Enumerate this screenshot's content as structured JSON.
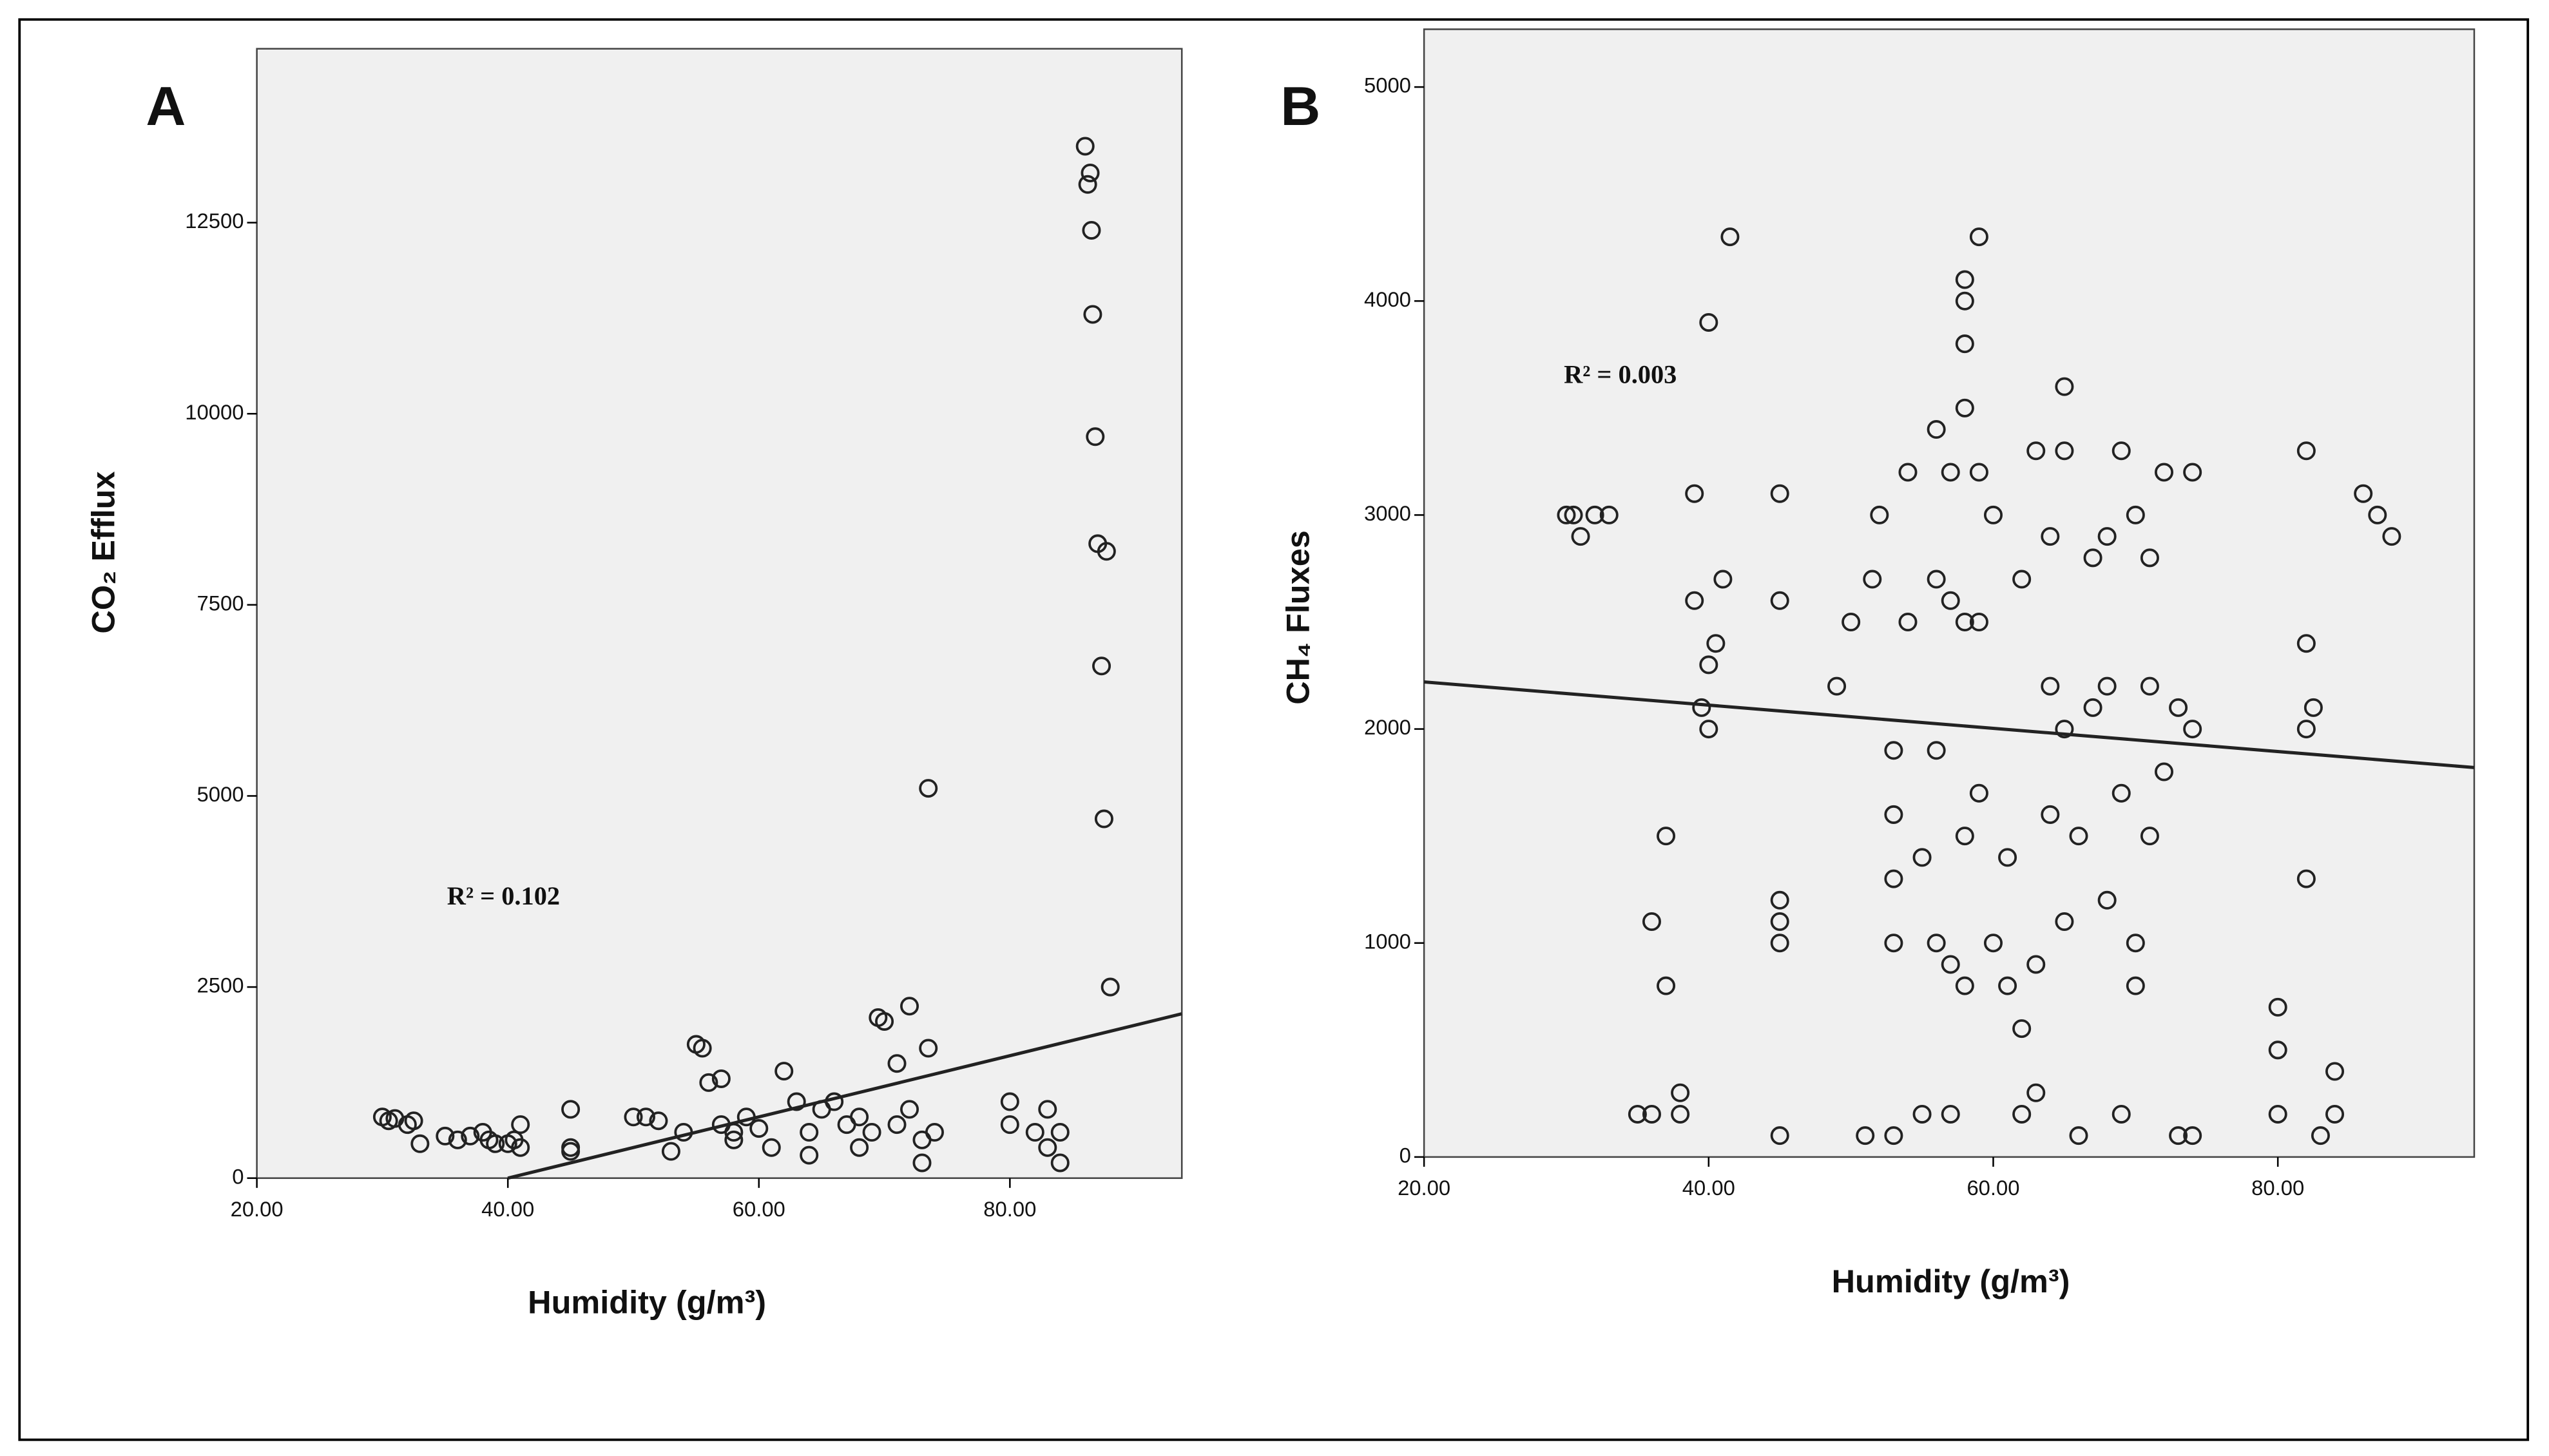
{
  "chart_data": [
    {
      "type": "scatter",
      "title": "A",
      "x_label": "Humidity (g/m³)",
      "y_label": "CO₂ Efflux",
      "annotation": "R² = 0.102",
      "xlim": [
        20,
        93.7
      ],
      "ylim": [
        0,
        14775
      ],
      "xticks": [
        {
          "value": 20,
          "label": "20.00"
        },
        {
          "value": 40,
          "label": "40.00"
        },
        {
          "value": 60,
          "label": "60.00"
        },
        {
          "value": 80,
          "label": "80.00"
        }
      ],
      "yticks": [
        0,
        2500,
        5000,
        7500,
        10000,
        12500
      ],
      "color": "#222222",
      "background": "#f0f0f0",
      "x": [
        30,
        30.5,
        31,
        32,
        32.5,
        33,
        35,
        36,
        37,
        38,
        38.5,
        39,
        40,
        40.5,
        41,
        41,
        45,
        45,
        45,
        50,
        51,
        52,
        53,
        54,
        55,
        55.5,
        56,
        57,
        57,
        58,
        58,
        59,
        60,
        61,
        62,
        63,
        64,
        64,
        65,
        66,
        67,
        68,
        68,
        69,
        69.5,
        70,
        71,
        71,
        72,
        72,
        73,
        73,
        73.5,
        74,
        73.5,
        80,
        80,
        82,
        83,
        83,
        84,
        84,
        86,
        86.2,
        86.4,
        86.5,
        86.6,
        86.8,
        87,
        87.3,
        87.5,
        87.7,
        88
      ],
      "y": [
        800,
        750,
        780,
        700,
        750,
        450,
        550,
        500,
        550,
        600,
        500,
        450,
        450,
        500,
        700,
        400,
        900,
        400,
        350,
        800,
        800,
        750,
        350,
        600,
        1750,
        1700,
        1250,
        1300,
        700,
        600,
        500,
        800,
        650,
        400,
        1400,
        1000,
        600,
        300,
        900,
        1000,
        700,
        800,
        400,
        600,
        2100,
        2050,
        1500,
        700,
        2250,
        900,
        500,
        200,
        1700,
        600,
        5100,
        1000,
        700,
        600,
        900,
        400,
        200,
        600,
        13500,
        13000,
        13150,
        12400,
        11300,
        9700,
        8300,
        6700,
        4700,
        8200,
        2500
      ],
      "fit_line": {
        "x": [
          40,
          93.7
        ],
        "y": [
          0,
          2150
        ]
      }
    },
    {
      "type": "scatter",
      "title": "B",
      "x_label": "Humidity (g/m³)",
      "y_label": "CH₄ Fluxes",
      "annotation": "R² = 0.003",
      "xlim": [
        20,
        93.8
      ],
      "ylim": [
        0,
        5270
      ],
      "xticks": [
        {
          "value": 20,
          "label": "20.00"
        },
        {
          "value": 40,
          "label": "40.00"
        },
        {
          "value": 60,
          "label": "60.00"
        },
        {
          "value": 80,
          "label": "80.00"
        }
      ],
      "yticks": [
        0,
        1000,
        2000,
        3000,
        4000,
        5000
      ],
      "color": "#222222",
      "background": "#f0f0f0",
      "x": [
        30,
        30.5,
        31,
        32,
        33,
        35,
        36,
        36,
        37,
        37,
        38,
        38,
        39,
        39,
        39.5,
        40,
        40,
        40,
        40.5,
        41,
        41.5,
        45,
        45,
        45,
        45,
        45,
        45,
        49,
        50,
        51,
        51.5,
        52,
        53,
        53,
        53,
        53,
        53,
        54,
        54,
        55,
        55,
        56,
        56,
        56,
        56,
        57,
        57,
        57,
        57,
        58,
        58,
        58,
        58,
        58,
        58,
        58,
        59,
        59,
        59,
        59,
        60,
        60,
        61,
        61,
        62,
        62,
        62,
        63,
        63,
        63,
        64,
        64,
        64,
        65,
        65,
        65,
        65,
        66,
        66,
        67,
        67,
        68,
        68,
        68,
        69,
        69,
        69,
        70,
        70,
        70,
        71,
        71,
        71,
        72,
        72,
        73,
        73,
        74,
        74,
        74,
        80,
        80,
        80,
        82,
        82,
        82,
        82,
        82.5,
        83,
        84,
        84,
        86,
        87,
        88
      ],
      "y": [
        3000,
        3000,
        2900,
        3000,
        3000,
        200,
        200,
        1100,
        1500,
        800,
        200,
        300,
        3100,
        2600,
        2100,
        2000,
        2300,
        3900,
        2400,
        2700,
        4300,
        3100,
        2600,
        1200,
        1100,
        1000,
        100,
        2200,
        2500,
        100,
        2700,
        3000,
        1900,
        1600,
        1300,
        1000,
        100,
        2500,
        3200,
        200,
        1400,
        1900,
        2700,
        3400,
        1000,
        3200,
        2600,
        900,
        200,
        3800,
        4000,
        4100,
        3500,
        2500,
        1500,
        800,
        4300,
        3200,
        1700,
        2500,
        1000,
        3000,
        1400,
        800,
        600,
        2700,
        200,
        300,
        900,
        3300,
        2200,
        1600,
        2900,
        3600,
        2000,
        1100,
        3300,
        1500,
        100,
        2100,
        2800,
        1200,
        2200,
        2900,
        1700,
        200,
        3300,
        800,
        1000,
        3000,
        1500,
        2200,
        2800,
        3200,
        1800,
        2100,
        100,
        3200,
        2000,
        100,
        700,
        500,
        200,
        3300,
        2400,
        1300,
        2000,
        2100,
        100,
        200,
        400,
        3100,
        3000,
        2900
      ],
      "fit_line": {
        "x": [
          20,
          93.8
        ],
        "y": [
          2220,
          1820
        ]
      }
    }
  ]
}
